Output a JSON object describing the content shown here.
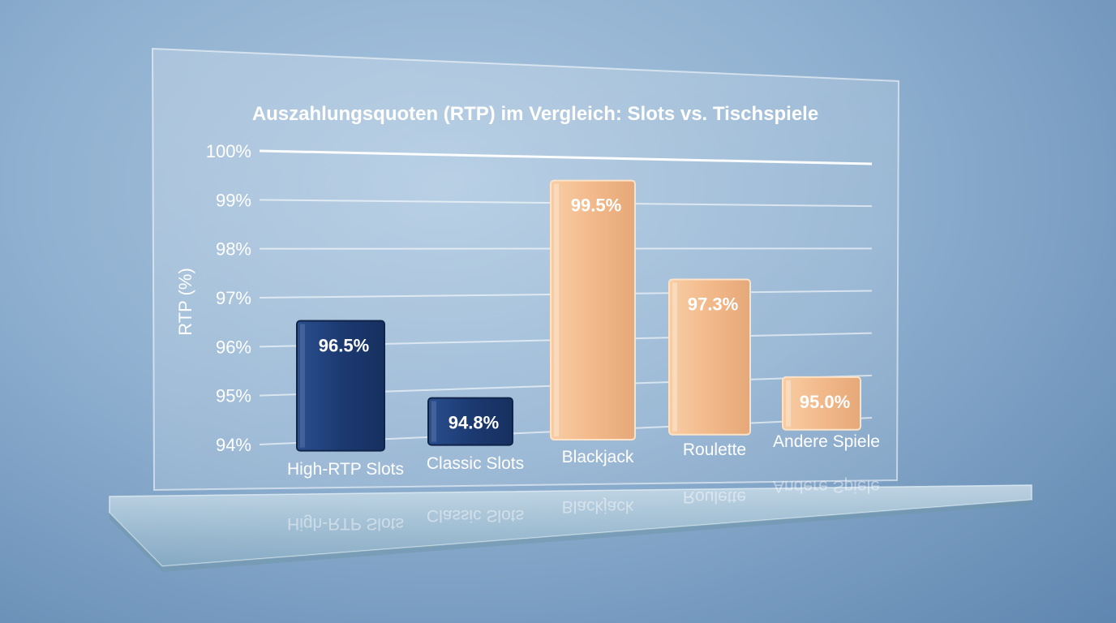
{
  "chart_data": {
    "type": "bar",
    "title": "Auszahlungsquoten (RTP) im Vergleich: Slots vs. Tischspiele",
    "ylabel": "RTP (%)",
    "xlabel": "",
    "ylim": [
      94,
      100
    ],
    "yticks": [
      "94%",
      "95%",
      "96%",
      "97%",
      "98%",
      "99%",
      "100%"
    ],
    "grid": true,
    "categories": [
      "High-RTP Slots",
      "Classic Slots",
      "Blackjack",
      "Roulette",
      "Andere Spiele"
    ],
    "values": [
      96.5,
      94.8,
      99.5,
      97.3,
      95.0
    ],
    "value_labels": [
      "96.5%",
      "94.8%",
      "99.5%",
      "97.3%",
      "95.0%"
    ],
    "colors": [
      "#1e3f7a",
      "#1e3f7a",
      "#f2b98a",
      "#f2b98a",
      "#f2b98a"
    ]
  }
}
